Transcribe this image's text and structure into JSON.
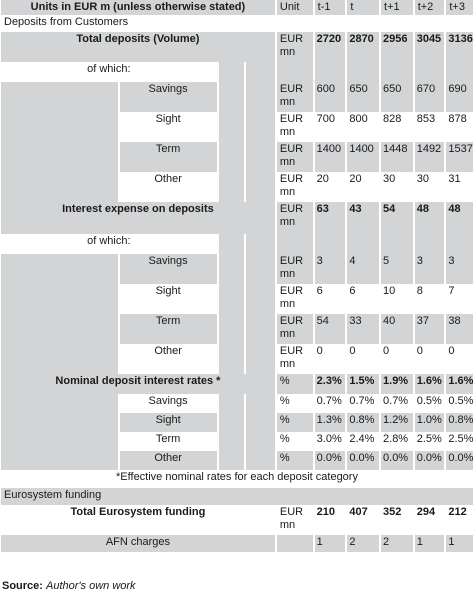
{
  "header": {
    "label": "Units in EUR m (unless otherwise stated)",
    "unit": "Unit",
    "years": [
      "t-1",
      "t",
      "t+1",
      "t+2",
      "t+3"
    ]
  },
  "deposits_section": "Deposits from Customers",
  "total_deposits": {
    "label": "Total deposits (Volume)",
    "unit": "EUR mn",
    "values": [
      "2720",
      "2870",
      "2956",
      "3045",
      "3136"
    ]
  },
  "of_which_1": "of which:",
  "deposit_rows": [
    {
      "label": "Savings",
      "unit": "EUR mn",
      "values": [
        "600",
        "650",
        "650",
        "670",
        "690"
      ]
    },
    {
      "label": "Sight",
      "unit": "EUR mn",
      "values": [
        "700",
        "800",
        "828",
        "853",
        "878"
      ]
    },
    {
      "label": "Term",
      "unit": "EUR mn",
      "values": [
        "1400",
        "1400",
        "1448",
        "1492",
        "1537"
      ]
    },
    {
      "label": "Other",
      "unit": "EUR mn",
      "values": [
        "20",
        "20",
        "30",
        "30",
        "31"
      ]
    }
  ],
  "interest_expense": {
    "label": "Interest expense on deposits",
    "unit": "EUR mn",
    "values": [
      "63",
      "43",
      "54",
      "48",
      "48"
    ]
  },
  "of_which_2": "of which:",
  "expense_rows": [
    {
      "label": "Savings",
      "unit": "EUR mn",
      "values": [
        "3",
        "4",
        "5",
        "3",
        "3"
      ]
    },
    {
      "label": "Sight",
      "unit": "EUR mn",
      "values": [
        "6",
        "6",
        "10",
        "8",
        "7"
      ]
    },
    {
      "label": "Term",
      "unit": "EUR mn",
      "values": [
        "54",
        "33",
        "40",
        "37",
        "38"
      ]
    },
    {
      "label": "Other",
      "unit": "EUR mn",
      "values": [
        "0",
        "0",
        "0",
        "0",
        "0"
      ]
    }
  ],
  "nominal_rates": {
    "label": "Nominal deposit interest rates *",
    "unit": "%",
    "values": [
      "2.3%",
      "1.5%",
      "1.9%",
      "1.6%",
      "1.6%"
    ]
  },
  "rate_rows": [
    {
      "label": "Savings",
      "unit": "%",
      "values": [
        "0.7%",
        "0.7%",
        "0.7%",
        "0.5%",
        "0.5%"
      ]
    },
    {
      "label": "Sight",
      "unit": "%",
      "values": [
        "1.3%",
        "0.8%",
        "1.2%",
        "1.0%",
        "0.8%"
      ]
    },
    {
      "label": "Term",
      "unit": "%",
      "values": [
        "3.0%",
        "2.4%",
        "2.8%",
        "2.5%",
        "2.5%"
      ]
    },
    {
      "label": "Other",
      "unit": "%",
      "values": [
        "0.0%",
        "0.0%",
        "0.0%",
        "0.0%",
        "0.0%"
      ]
    }
  ],
  "footnote": "*Effective nominal rates for each deposit category",
  "eurosystem_section": "Eurosystem funding",
  "total_eurosystem": {
    "label": "Total Eurosystem funding",
    "unit": "EUR mn",
    "values": [
      "210",
      "407",
      "352",
      "294",
      "212"
    ]
  },
  "afn": {
    "label": "AFN charges",
    "unit": "",
    "values": [
      "1",
      "2",
      "2",
      "1",
      "1"
    ]
  },
  "source": {
    "prefix": "Source:",
    "text": "Author's own work"
  }
}
